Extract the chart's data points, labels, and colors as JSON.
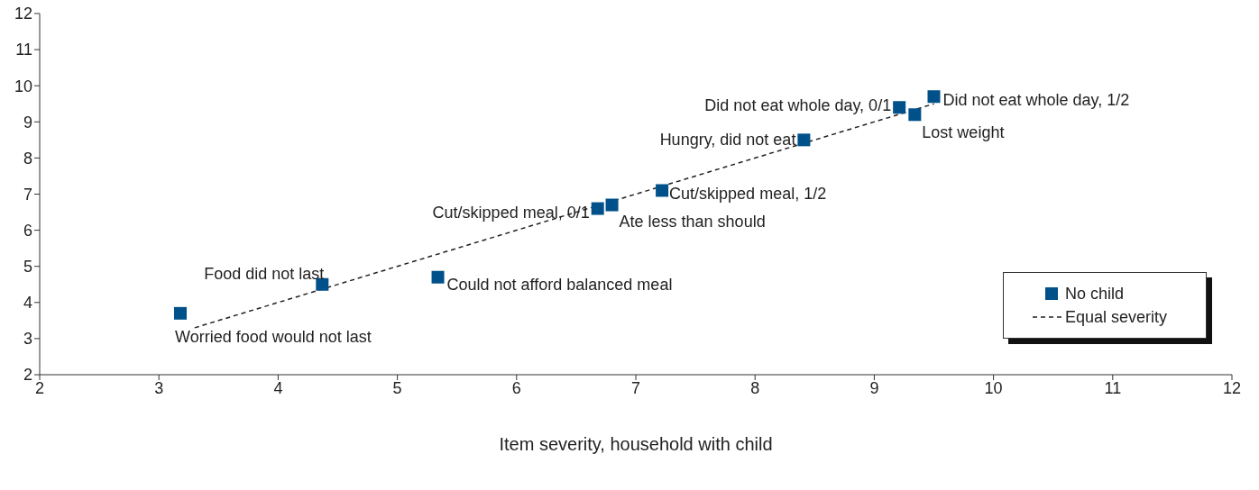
{
  "chart_data": {
    "type": "scatter",
    "xlabel": "Item severity, household with child",
    "xlim": [
      2,
      12
    ],
    "xticks": [
      2,
      3,
      4,
      5,
      6,
      7,
      8,
      9,
      10,
      11,
      12
    ],
    "ylim": [
      2,
      12
    ],
    "yticks": [
      2,
      3,
      4,
      5,
      6,
      7,
      8,
      9,
      10,
      11,
      12
    ],
    "grid": false,
    "legend": "right",
    "marker": "square",
    "series": [
      {
        "name": "No child",
        "color": "#00508a",
        "x": [
          3.18,
          4.37,
          5.34,
          6.68,
          6.8,
          7.22,
          8.41,
          9.21,
          9.34,
          9.5
        ],
        "values": [
          3.7,
          4.5,
          4.7,
          6.6,
          6.7,
          7.1,
          8.5,
          9.4,
          9.2,
          9.7
        ]
      },
      {
        "name": "Equal severity",
        "type": "line",
        "color": "#222222",
        "marker": "none",
        "line_style": "dashed",
        "x": [
          3.3,
          9.5
        ],
        "values": [
          3.3,
          9.5
        ]
      }
    ],
    "annotations": [
      {
        "text": "Worried food would not last",
        "x": 3.18,
        "y": 3.7
      },
      {
        "text": "Food did not last",
        "x": 4.37,
        "y": 4.5
      },
      {
        "text": "Could not afford balanced meal",
        "x": 5.34,
        "y": 4.7
      },
      {
        "text": "Cut/skipped meal, 0/1",
        "x": 6.68,
        "y": 6.6
      },
      {
        "text": "Ate less than should",
        "x": 6.8,
        "y": 6.7
      },
      {
        "text": "Cut/skipped meal, 1/2",
        "x": 7.22,
        "y": 7.1
      },
      {
        "text": "Hungry, did not eat",
        "x": 8.41,
        "y": 8.5
      },
      {
        "text": "Did not eat whole day, 0/1",
        "x": 9.21,
        "y": 9.4
      },
      {
        "text": "Lost weight",
        "x": 9.34,
        "y": 9.2
      },
      {
        "text": "Did not eat whole  day, 1/2",
        "x": 9.5,
        "y": 9.7
      }
    ]
  }
}
